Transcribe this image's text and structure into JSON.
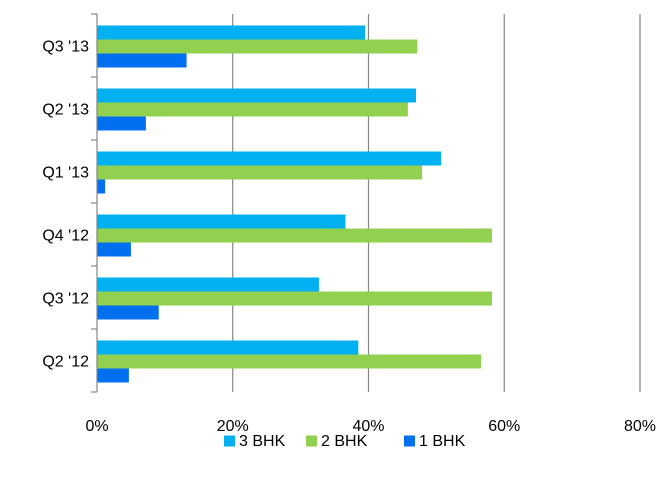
{
  "chart_data": {
    "type": "bar",
    "orientation": "horizontal",
    "categories": [
      "Q2 '12",
      "Q3 '12",
      "Q4 '12",
      "Q1 '13",
      "Q2 '13",
      "Q3 '13"
    ],
    "series": [
      {
        "name": "3 BHK",
        "color": "#00B0F0",
        "values": [
          38.5,
          32.7,
          36.6,
          50.7,
          47.0,
          39.5
        ]
      },
      {
        "name": "2 BHK",
        "color": "#92D050",
        "values": [
          56.6,
          58.2,
          58.2,
          47.9,
          45.8,
          47.2
        ]
      },
      {
        "name": "1 BHK",
        "color": "#0070F0",
        "values": [
          4.7,
          9.1,
          5.0,
          1.2,
          7.2,
          13.2
        ]
      }
    ],
    "xticks": [
      "0%",
      "20%",
      "40%",
      "60%",
      "80%"
    ],
    "xlim": [
      0,
      80
    ],
    "grid": true,
    "legend_position": "bottom",
    "title": "",
    "xlabel": "",
    "ylabel": ""
  }
}
